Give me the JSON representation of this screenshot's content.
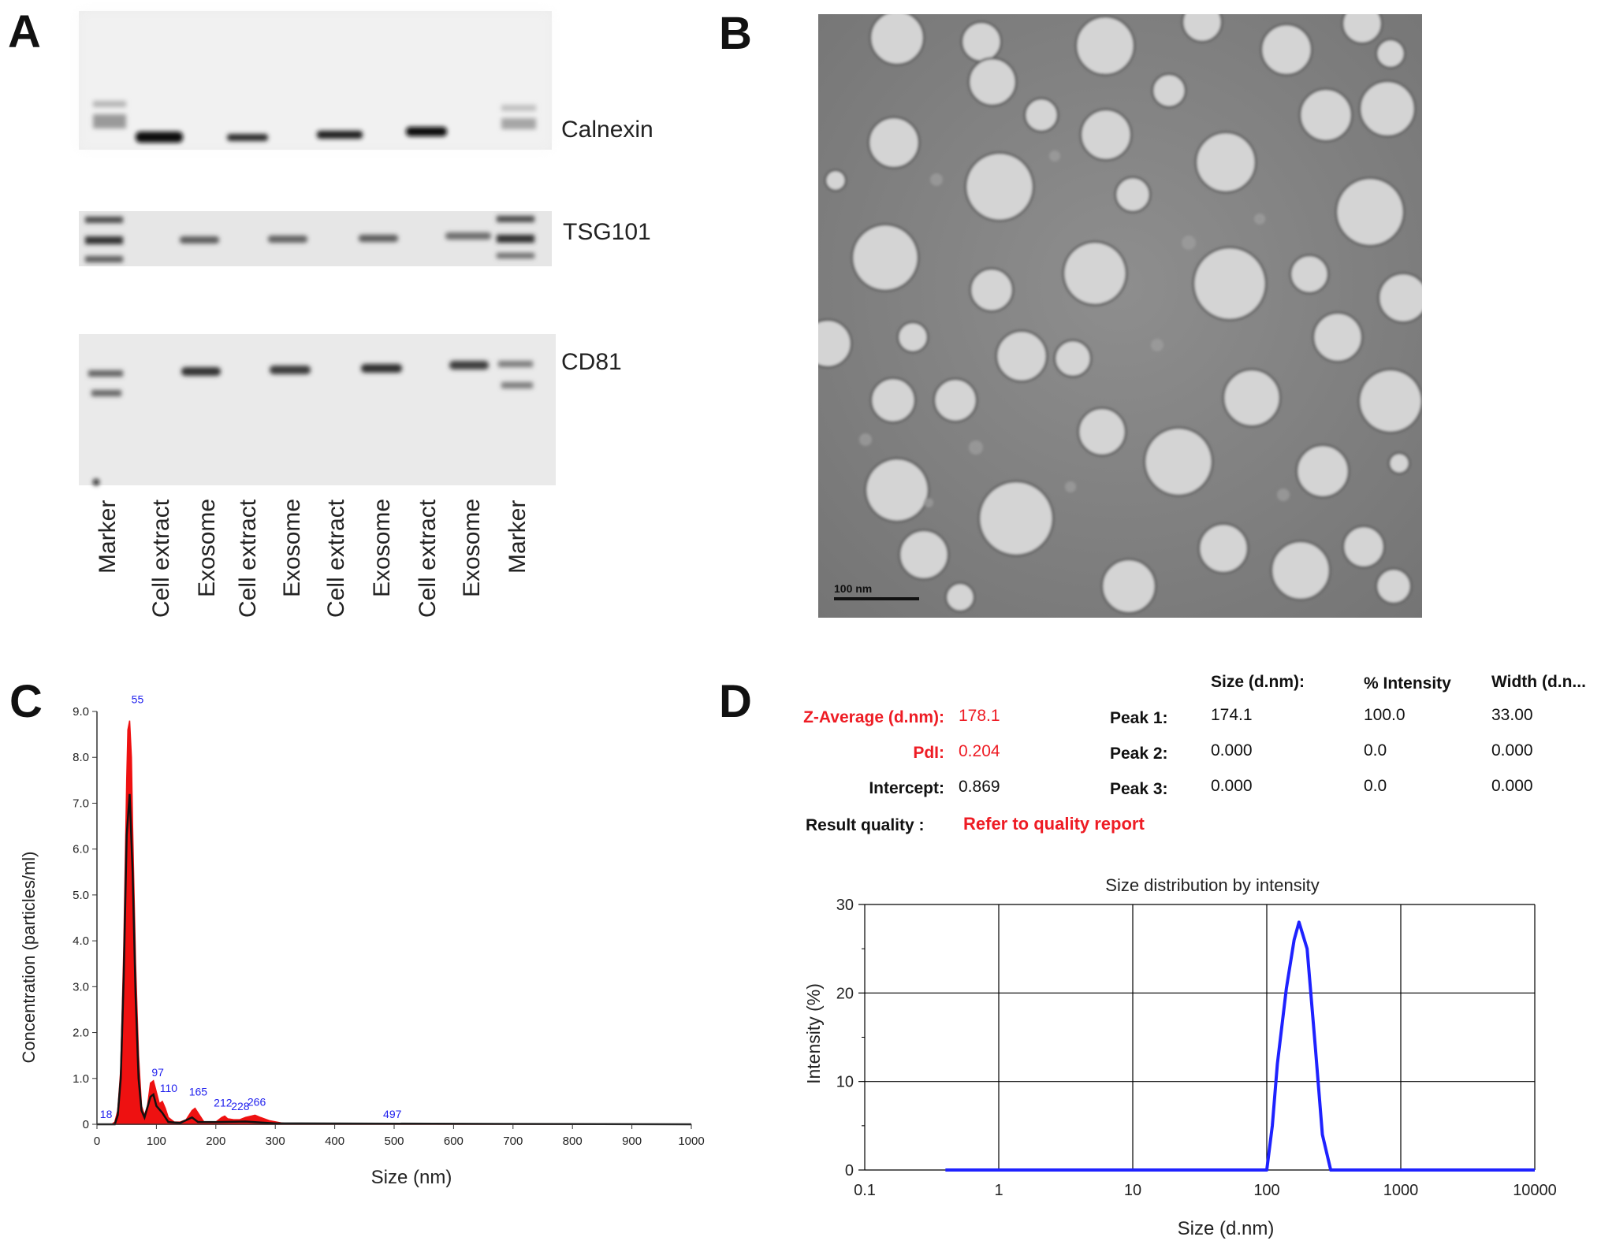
{
  "panels": {
    "a": "A",
    "b": "B",
    "c": "C",
    "d": "D"
  },
  "blot": {
    "rows": [
      "Calnexin",
      "TSG101",
      "CD81"
    ],
    "lanes": [
      "Marker",
      "Cell extract",
      "Exosome",
      "Cell extract",
      "Exosome",
      "Cell extract",
      "Exosome",
      "Cell extract",
      "Exosome",
      "Marker"
    ]
  },
  "tem": {
    "scale_bar": "100 nm"
  },
  "chart_data": [
    {
      "type": "area",
      "xlabel": "Size (nm)",
      "ylabel": "Concentration (particles/ml)",
      "xlim": [
        0,
        1000
      ],
      "ylim": [
        0,
        9.0
      ],
      "x_ticks": [
        "0",
        "100",
        "200",
        "300",
        "400",
        "500",
        "600",
        "700",
        "800",
        "900",
        "1000"
      ],
      "y_ticks": [
        "0",
        "1.0",
        "2.0",
        "3.0",
        "4.0",
        "5.0",
        "6.0",
        "7.0",
        "8.0",
        "9.0"
      ],
      "peak_labels": [
        "18",
        "55",
        "97",
        "110",
        "165",
        "212",
        "228",
        "266",
        "497"
      ],
      "peak_label_x": [
        18,
        55,
        97,
        110,
        165,
        212,
        228,
        266,
        497
      ],
      "series": [
        {
          "x": [
            0,
            25,
            30,
            35,
            40,
            45,
            50,
            52,
            55,
            58,
            60,
            65,
            70,
            75,
            80,
            85,
            90,
            95,
            100,
            105,
            110,
            115,
            120,
            130,
            140,
            150,
            160,
            165,
            170,
            180,
            190,
            200,
            210,
            215,
            220,
            230,
            240,
            250,
            260,
            266,
            275,
            290,
            310,
            330,
            400,
            1000
          ],
          "values": [
            0,
            0,
            0.05,
            0.3,
            1.2,
            3.8,
            7.5,
            8.6,
            8.8,
            8.0,
            6.5,
            3.5,
            1.5,
            0.4,
            0.2,
            0.4,
            0.9,
            0.95,
            0.7,
            0.45,
            0.5,
            0.35,
            0.15,
            0.05,
            0.05,
            0.1,
            0.3,
            0.35,
            0.25,
            0.05,
            0.02,
            0.05,
            0.15,
            0.18,
            0.12,
            0.1,
            0.1,
            0.15,
            0.18,
            0.2,
            0.15,
            0.08,
            0.03,
            0,
            0,
            0
          ],
          "color": "#ee1111"
        },
        {
          "x": [
            0,
            30,
            35,
            40,
            45,
            50,
            55,
            60,
            65,
            70,
            75,
            80,
            90,
            95,
            100,
            110,
            120,
            140,
            160,
            170,
            200,
            250,
            300,
            1000
          ],
          "values": [
            0,
            0,
            0.2,
            1.0,
            3.2,
            6.3,
            7.2,
            5.5,
            2.8,
            1.0,
            0.3,
            0.15,
            0.6,
            0.65,
            0.4,
            0.25,
            0.05,
            0.03,
            0.15,
            0.05,
            0.05,
            0.06,
            0.02,
            0
          ],
          "color": "#111111"
        }
      ]
    },
    {
      "type": "line",
      "title": "Size distribution by intensity",
      "xlabel": "Size (d.nm)",
      "ylabel": "Intensity (%)",
      "x_scale": "log",
      "xlim": [
        0.1,
        10000
      ],
      "ylim": [
        0,
        30
      ],
      "x_ticks": [
        "0.1",
        "1",
        "10",
        "100",
        "1000",
        "10000"
      ],
      "y_ticks": [
        "0",
        "10",
        "20",
        "30"
      ],
      "grid": true,
      "series": [
        {
          "x": [
            0.4,
            100,
            110,
            120,
            140,
            160,
            174,
            200,
            230,
            260,
            300,
            10000
          ],
          "values": [
            0,
            0,
            5,
            12,
            20.5,
            26,
            28,
            25,
            14,
            4,
            0,
            0
          ],
          "color": "#1e22ff"
        }
      ]
    }
  ],
  "dls_table": {
    "headers": [
      "Size (d.nm):",
      "% Intensity",
      "Width (d.n..."
    ],
    "z_average": {
      "label": "Z-Average (d.nm):",
      "value": "178.1"
    },
    "pdi": {
      "label": "PdI:",
      "value": "0.204"
    },
    "intercept": {
      "label": "Intercept:",
      "value": "0.869"
    },
    "result_quality": {
      "label": "Result quality :",
      "value": "Refer to quality report"
    },
    "peaks": [
      {
        "label": "Peak 1:",
        "size": "174.1",
        "intensity": "100.0",
        "width": "33.00"
      },
      {
        "label": "Peak 2:",
        "size": "0.000",
        "intensity": "0.0",
        "width": "0.000"
      },
      {
        "label": "Peak 3:",
        "size": "0.000",
        "intensity": "0.0",
        "width": "0.000"
      }
    ]
  },
  "colors": {
    "red_text": "#ee1c24",
    "nta_fill": "#ee1111",
    "dls_line": "#1e22ff"
  }
}
